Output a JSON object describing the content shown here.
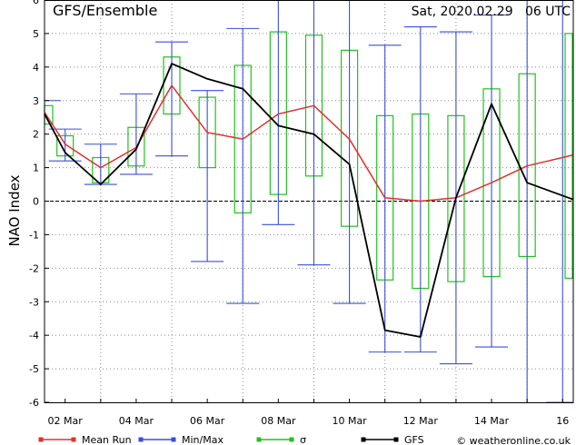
{
  "header": {
    "title": "GFS/Ensemble",
    "timestamp": "Sat, 2020.02.29   06 UTC"
  },
  "footer": {
    "copyright": "© weatheronline.co.uk"
  },
  "colors": {
    "mean": "#e03030",
    "minmax": "#3a4fd8",
    "sigma": "#22c022",
    "gfs": "#000000",
    "grid": "#888888"
  },
  "chart_data": {
    "type": "line",
    "ylabel": "NAO Index",
    "xlabel": "",
    "ylim": [
      -6,
      6
    ],
    "yticks": [
      -6,
      -5,
      -4,
      -3,
      -2,
      -1,
      0,
      1,
      2,
      3,
      4,
      5,
      6
    ],
    "x_ticks": [
      {
        "label": "02 Mar",
        "x": 1
      },
      {
        "label": "04 Mar",
        "x": 3
      },
      {
        "label": "06 Mar",
        "x": 5
      },
      {
        "label": "08 Mar",
        "x": 7
      },
      {
        "label": "10 Mar",
        "x": 9
      },
      {
        "label": "12 Mar",
        "x": 11
      },
      {
        "label": "14 Mar",
        "x": 13
      },
      {
        "label": "16",
        "x": 15
      }
    ],
    "x_grid": [
      2,
      4,
      6,
      8,
      10,
      12,
      14
    ],
    "xlim": [
      0.42,
      15.3
    ],
    "x_unit": "days after 01 Mar",
    "legend": {
      "placement": "bottom",
      "items": [
        {
          "key": "mean",
          "label": "Mean Run"
        },
        {
          "key": "minmax",
          "label": "Min/Max"
        },
        {
          "key": "sigma",
          "label": "σ"
        },
        {
          "key": "gfs",
          "label": "GFS"
        }
      ]
    },
    "series": [
      {
        "name": "Mean Run",
        "key": "mean",
        "x": [
          0.42,
          1.0,
          2.0,
          3.0,
          4.0,
          5.0,
          6.0,
          7.0,
          8.0,
          9.0,
          10.0,
          11.0,
          12.0,
          13.0,
          14.0,
          15.3
        ],
        "y": [
          2.65,
          1.7,
          1.0,
          1.6,
          3.45,
          2.05,
          1.85,
          2.6,
          2.85,
          1.85,
          0.1,
          0.0,
          0.1,
          0.55,
          1.05,
          1.38
        ]
      },
      {
        "name": "GFS",
        "key": "gfs",
        "x": [
          0.42,
          1.0,
          2.0,
          3.0,
          4.0,
          5.0,
          6.0,
          7.0,
          8.0,
          9.0,
          10.0,
          11.0,
          12.0,
          13.0,
          14.0,
          15.3
        ],
        "y": [
          2.6,
          1.45,
          0.5,
          1.55,
          4.1,
          3.65,
          3.35,
          2.25,
          2.0,
          1.1,
          -3.85,
          -4.05,
          0.1,
          2.9,
          0.55,
          0.05
        ]
      }
    ],
    "minmax": [
      {
        "x": 0.42,
        "min": null,
        "max": 3.0
      },
      {
        "x": 1.0,
        "min": 1.2,
        "max": 2.15
      },
      {
        "x": 2.0,
        "min": 0.5,
        "max": 1.7
      },
      {
        "x": 3.0,
        "min": 0.8,
        "max": 3.2
      },
      {
        "x": 4.0,
        "min": 1.35,
        "max": 4.75
      },
      {
        "x": 5.0,
        "min": -1.8,
        "max": 3.3
      },
      {
        "x": 6.0,
        "min": -3.05,
        "max": 5.15
      },
      {
        "x": 7.0,
        "min": -0.7,
        "max": 6.0
      },
      {
        "x": 8.0,
        "min": -1.9,
        "max": 6.0
      },
      {
        "x": 9.0,
        "min": -3.05,
        "max": 6.0
      },
      {
        "x": 10.0,
        "min": -4.5,
        "max": 4.65
      },
      {
        "x": 11.0,
        "min": -4.5,
        "max": 5.2
      },
      {
        "x": 12.0,
        "min": -4.85,
        "max": 5.05
      },
      {
        "x": 13.0,
        "min": -4.35,
        "max": 5.55
      },
      {
        "x": 14.0,
        "min": null,
        "max": 6.0
      },
      {
        "x": 15.0,
        "min": -6.0,
        "max": null
      }
    ],
    "sigma": [
      {
        "x": 0.42,
        "low": 2.3,
        "high": 2.85
      },
      {
        "x": 1.0,
        "low": 1.35,
        "high": 1.95
      },
      {
        "x": 2.0,
        "low": 0.55,
        "high": 1.3
      },
      {
        "x": 3.0,
        "low": 1.05,
        "high": 2.2
      },
      {
        "x": 4.0,
        "low": 2.6,
        "high": 4.3
      },
      {
        "x": 5.0,
        "low": 1.0,
        "high": 3.1
      },
      {
        "x": 6.0,
        "low": -0.35,
        "high": 4.05
      },
      {
        "x": 7.0,
        "low": 0.2,
        "high": 5.05
      },
      {
        "x": 8.0,
        "low": 0.75,
        "high": 4.95
      },
      {
        "x": 9.0,
        "low": -0.75,
        "high": 4.5
      },
      {
        "x": 10.0,
        "low": -2.35,
        "high": 2.55
      },
      {
        "x": 11.0,
        "low": -2.6,
        "high": 2.6
      },
      {
        "x": 12.0,
        "low": -2.4,
        "high": 2.55
      },
      {
        "x": 13.0,
        "low": -2.25,
        "high": 3.35
      },
      {
        "x": 14.0,
        "low": -1.65,
        "high": 3.8
      },
      {
        "x": 15.3,
        "low": -2.3,
        "high": 5.0
      }
    ]
  }
}
